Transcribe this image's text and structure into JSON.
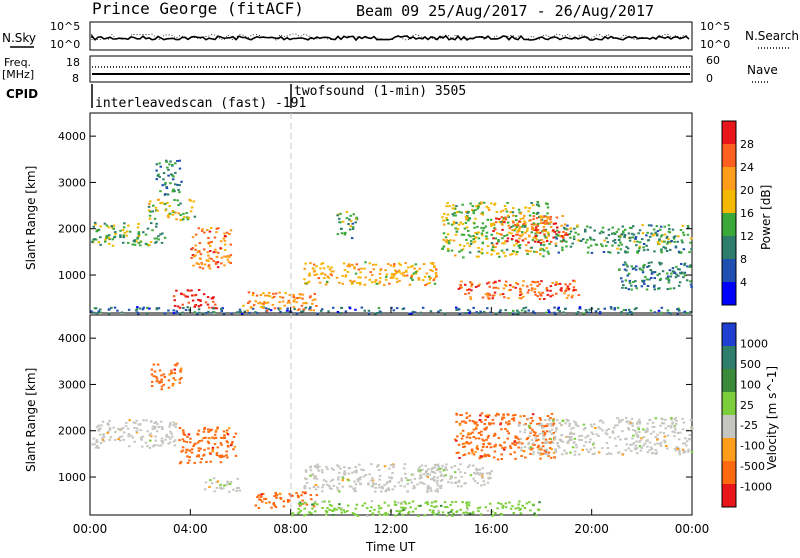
{
  "header": {
    "station": "Prince George (fitACF)",
    "beam_date": "Beam 09  25/Aug/2017 - 26/Aug/2017"
  },
  "noise_panel": {
    "left_label": "N.Sky",
    "right_label": "N.Search",
    "left_ticks": [
      "10^5",
      "10^0"
    ],
    "right_ticks": [
      "10^5",
      "10^0"
    ]
  },
  "freq_panel": {
    "left_label_1": "Freq.",
    "left_label_2": "[MHz]",
    "right_label": "Nave",
    "left_ticks": [
      "18",
      "8"
    ],
    "right_ticks": [
      "60",
      "0"
    ]
  },
  "cpid_panel": {
    "label": "CPID",
    "modes": [
      {
        "name": "interleavedscan (fast) -191",
        "start_hour": 0
      },
      {
        "name": "twofsound (1-min) 3505",
        "start_hour": 8
      }
    ]
  },
  "chart_data": [
    {
      "type": "heatmap",
      "parameter": "Power",
      "ylabel": "Slant Range [km]",
      "xlabel": "Time UT",
      "x_range_hours": [
        0,
        24
      ],
      "ylim_km": [
        180,
        4500
      ],
      "y_ticks": [
        1000,
        2000,
        3000,
        4000
      ],
      "colorbar": {
        "label": "Power [dB]",
        "ticks": [
          "28",
          "24",
          "20",
          "16",
          "12",
          "8",
          "4"
        ],
        "colors": [
          "#e8151a",
          "#ff5f1f",
          "#ff9c1a",
          "#f5b800",
          "#3aa93a",
          "#2e7d6b",
          "#1f4fb0",
          "#0000ff"
        ]
      },
      "regions": [
        {
          "t0": 0.0,
          "t1": 3.0,
          "r0": 1650,
          "r1": 2150,
          "value": 12
        },
        {
          "t0": 2.6,
          "t1": 3.6,
          "r0": 2750,
          "r1": 3500,
          "value": 8
        },
        {
          "t0": 2.3,
          "t1": 4.2,
          "r0": 2200,
          "r1": 2650,
          "value": 14
        },
        {
          "t0": 4.0,
          "t1": 5.6,
          "r0": 1150,
          "r1": 2050,
          "value": 22
        },
        {
          "t0": 3.3,
          "t1": 5.0,
          "r0": 300,
          "r1": 700,
          "value": 28
        },
        {
          "t0": 0.0,
          "t1": 24.0,
          "r0": 180,
          "r1": 330,
          "value": 6
        },
        {
          "t0": 6.0,
          "t1": 9.0,
          "r0": 250,
          "r1": 650,
          "value": 20
        },
        {
          "t0": 8.5,
          "t1": 13.8,
          "r0": 800,
          "r1": 1300,
          "value": 18
        },
        {
          "t0": 9.8,
          "t1": 10.6,
          "r0": 1800,
          "r1": 2400,
          "value": 10
        },
        {
          "t0": 14.0,
          "t1": 18.3,
          "r0": 1400,
          "r1": 2600,
          "value": 14
        },
        {
          "t0": 16.0,
          "t1": 19.0,
          "r0": 1700,
          "r1": 2300,
          "value": 24
        },
        {
          "t0": 18.5,
          "t1": 24.0,
          "r0": 1500,
          "r1": 2100,
          "value": 10
        },
        {
          "t0": 14.5,
          "t1": 19.5,
          "r0": 500,
          "r1": 900,
          "value": 24
        },
        {
          "t0": 21.0,
          "t1": 24.0,
          "r0": 700,
          "r1": 1300,
          "value": 8
        }
      ]
    },
    {
      "type": "heatmap",
      "parameter": "Velocity",
      "ylabel": "Slant Range [km]",
      "xlabel": "Time UT",
      "x_range_hours": [
        0,
        24
      ],
      "ylim_km": [
        180,
        4500
      ],
      "y_ticks": [
        1000,
        2000,
        3000,
        4000
      ],
      "x_ticks": [
        "00:00",
        "04:00",
        "08:00",
        "12:00",
        "16:00",
        "20:00",
        "00:00"
      ],
      "colorbar": {
        "label": "Velocity [m s^-1]",
        "ticks": [
          "1000",
          "500",
          "100",
          "25",
          "-25",
          "-100",
          "-500",
          "-1000"
        ],
        "colors": [
          "#1f3fd0",
          "#2e7d6b",
          "#3a8a3a",
          "#7ccf3a",
          "#c6c6c0",
          "#ff9c1a",
          "#ff6a10",
          "#e8151a"
        ]
      },
      "regions": [
        {
          "t0": 0.0,
          "t1": 3.5,
          "r0": 1650,
          "r1": 2250,
          "value": 0
        },
        {
          "t0": 2.4,
          "t1": 3.6,
          "r0": 2900,
          "r1": 3500,
          "value": -120
        },
        {
          "t0": 3.5,
          "t1": 5.8,
          "r0": 1300,
          "r1": 2100,
          "value": -300
        },
        {
          "t0": 4.5,
          "t1": 6.0,
          "r0": 700,
          "r1": 1000,
          "value": 0
        },
        {
          "t0": 6.5,
          "t1": 9.0,
          "r0": 350,
          "r1": 700,
          "value": -300
        },
        {
          "t0": 8.0,
          "t1": 18.0,
          "r0": 180,
          "r1": 500,
          "value": 60
        },
        {
          "t0": 8.5,
          "t1": 14.0,
          "r0": 700,
          "r1": 1300,
          "value": 0
        },
        {
          "t0": 14.5,
          "t1": 18.5,
          "r0": 1400,
          "r1": 2400,
          "value": -250
        },
        {
          "t0": 17.0,
          "t1": 24.0,
          "r0": 1500,
          "r1": 2300,
          "value": 0
        },
        {
          "t0": 13.0,
          "t1": 16.0,
          "r0": 800,
          "r1": 1300,
          "value": 0
        }
      ]
    }
  ]
}
